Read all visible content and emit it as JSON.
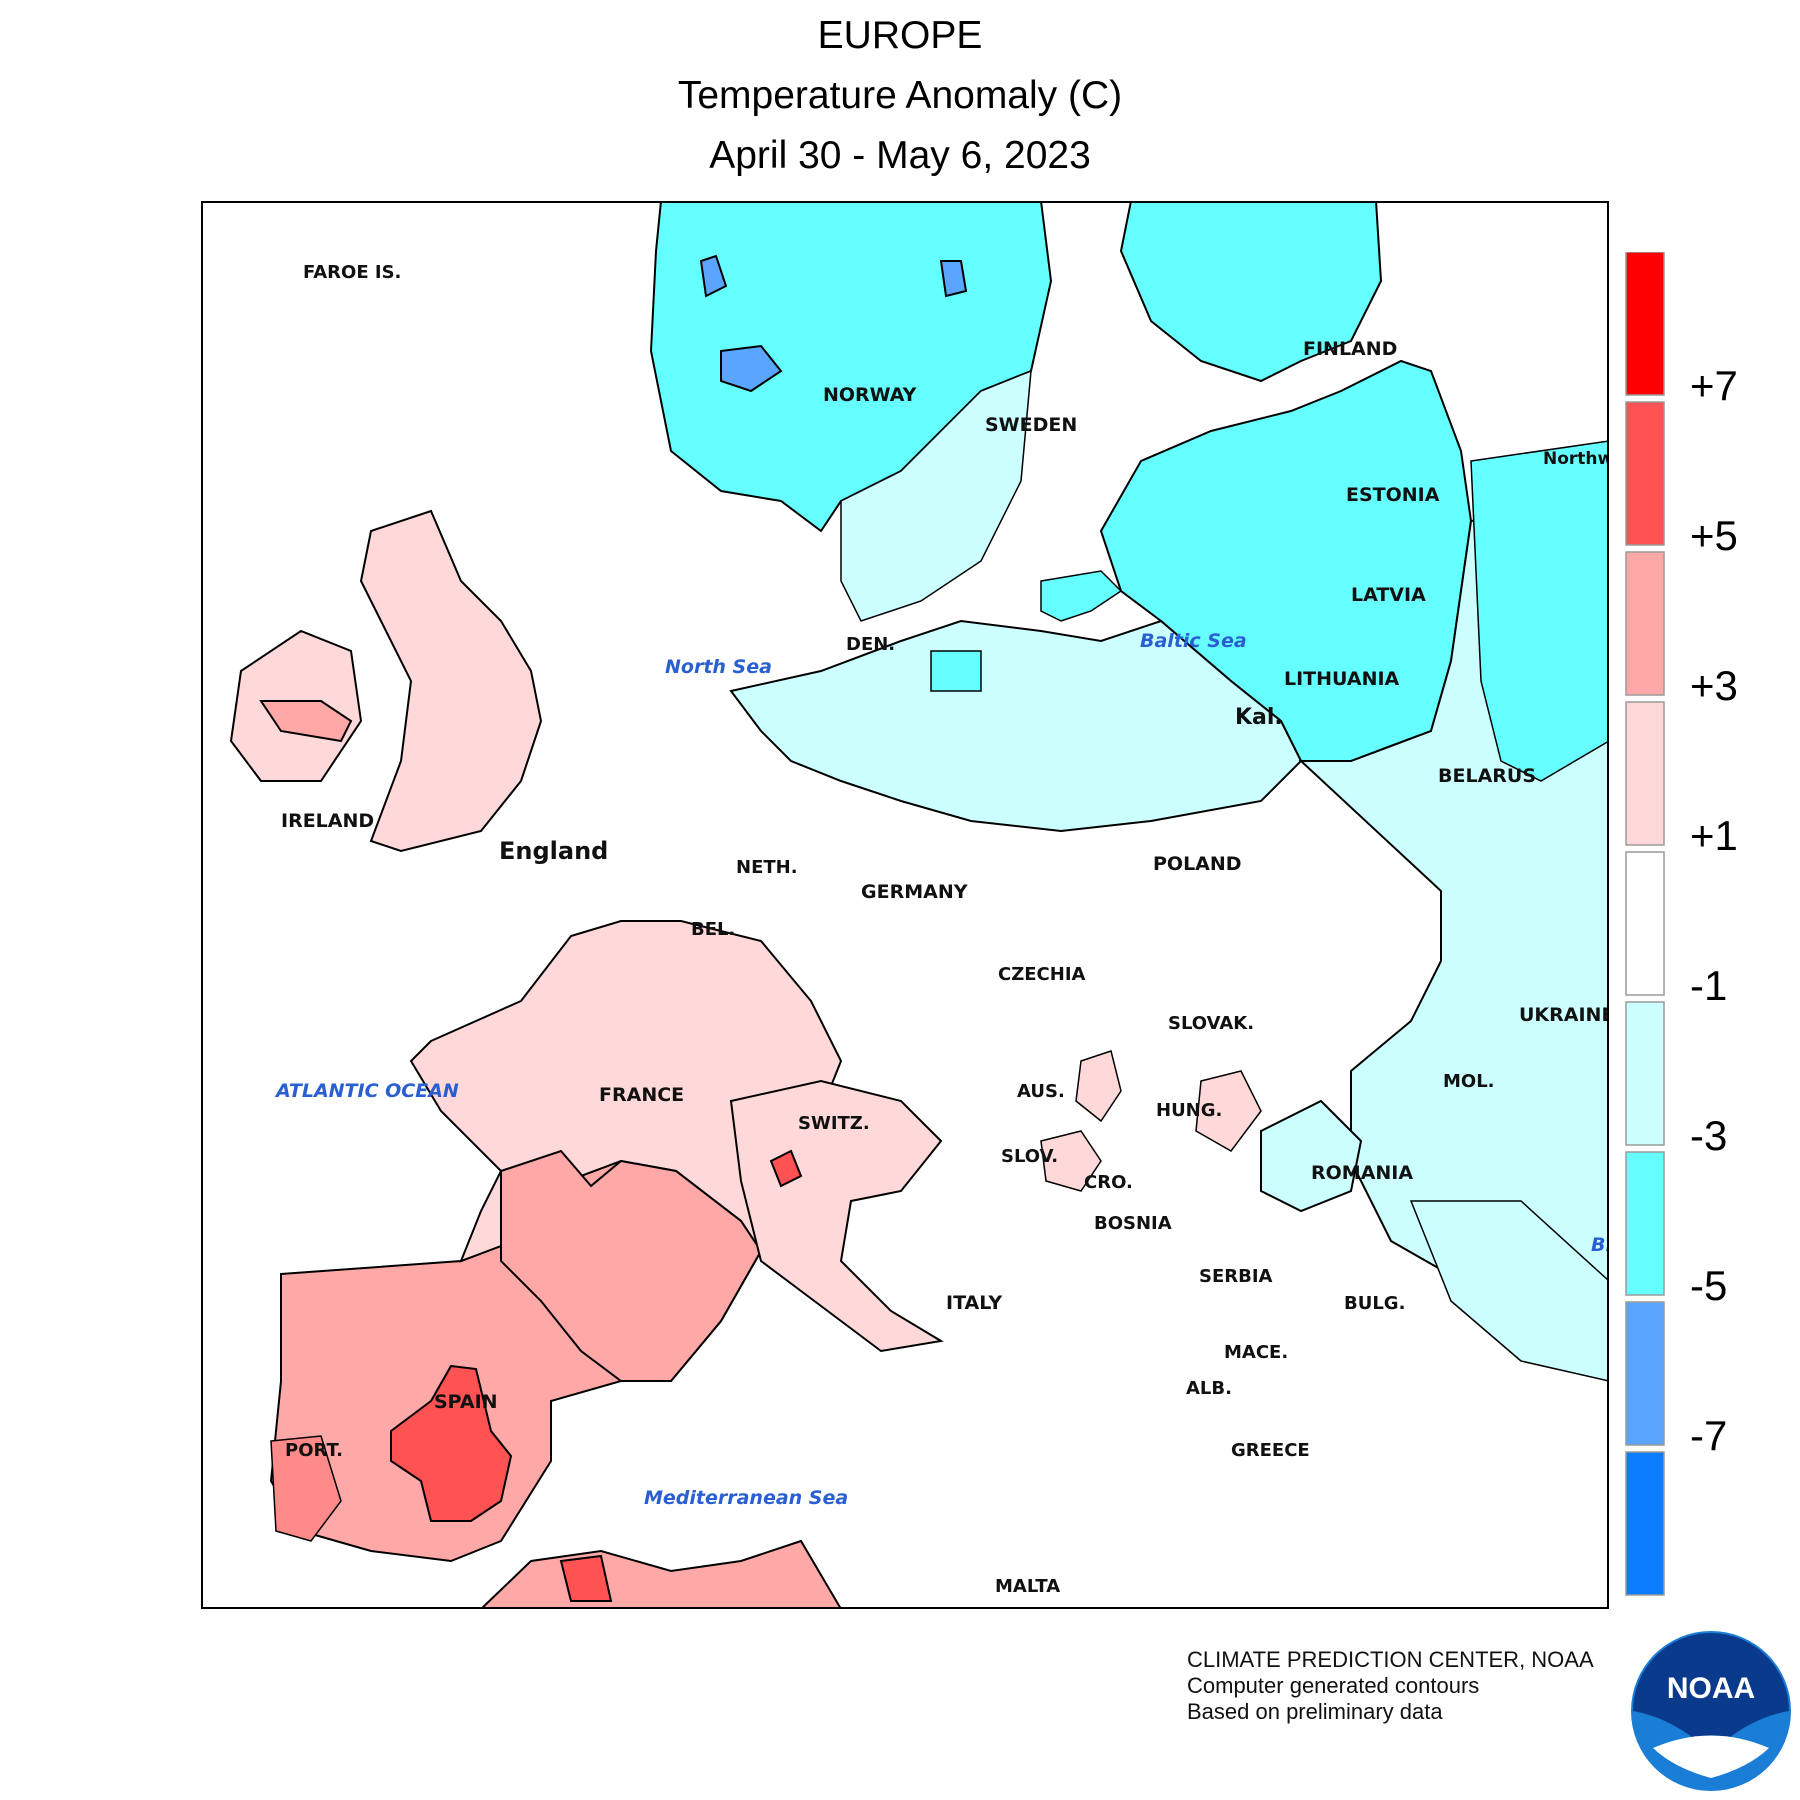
{
  "title": {
    "line1": "EUROPE",
    "line2": "Temperature Anomaly (C)",
    "line3": "April 30 - May 6, 2023"
  },
  "legend": {
    "bins": [
      {
        "range": "> +7",
        "color": "#ff0000"
      },
      {
        "range": "+5 to +7",
        "color": "#ff5252"
      },
      {
        "range": "+3 to +5",
        "color": "#ffa8a8"
      },
      {
        "range": "+1 to +3",
        "color": "#ffd9d9"
      },
      {
        "range": "-1 to +1",
        "color": "#ffffff"
      },
      {
        "range": "-3 to -1",
        "color": "#ccffff"
      },
      {
        "range": "-5 to -3",
        "color": "#66ffff"
      },
      {
        "range": "-7 to -5",
        "color": "#5aa5ff"
      },
      {
        "range": "< -7",
        "color": "#0a7dff"
      }
    ],
    "tick_labels": [
      "+7",
      "+5",
      "+3",
      "+1",
      "-1",
      "-3",
      "-5",
      "-7"
    ]
  },
  "map": {
    "countries": [
      "FAROE IS.",
      "NORWAY",
      "SWEDEN",
      "FINLAND",
      "ESTONIA",
      "LATVIA",
      "LITHUANIA",
      "Kal.",
      "BELARUS",
      "DEN.",
      "IRELAND",
      "England",
      "NETH.",
      "GERMANY",
      "POLAND",
      "BEL.",
      "CZECHIA",
      "SLOVAK.",
      "UKRAINE",
      "AUS.",
      "HUNG.",
      "MOL.",
      "FRANCE",
      "SWITZ.",
      "SLOV.",
      "CRO.",
      "ROMANIA",
      "BOSNIA",
      "SERBIA",
      "BULG.",
      "ITALY",
      "MACE.",
      "ALB.",
      "SPAIN",
      "PORT.",
      "GREECE",
      "MALTA",
      "Northwest District"
    ],
    "seas": [
      "North Sea",
      "Baltic Sea",
      "ATLANTIC OCEAN",
      "Mediterranean Sea",
      "Black Sea"
    ]
  },
  "credits": {
    "line1": "CLIMATE PREDICTION CENTER, NOAA",
    "line2": "Computer generated contours",
    "line3": "Based on preliminary data"
  },
  "logo": {
    "text": "NOAA",
    "icon": "noaa-logo-icon"
  }
}
